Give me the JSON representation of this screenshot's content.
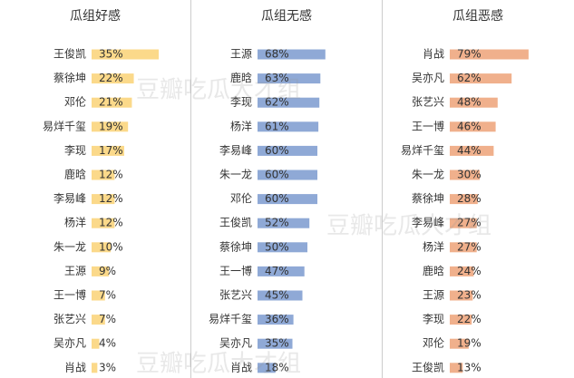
{
  "watermark": "豆瓣吃瓜大才组",
  "chart_data": [
    {
      "type": "bar",
      "title": "瓜组好感",
      "color": "#fbd98a",
      "xlim": [
        0,
        52
      ],
      "categories": [
        "王俊凯",
        "蔡徐坤",
        "邓伦",
        "易烊千玺",
        "李现",
        "鹿晗",
        "李易峰",
        "杨洋",
        "朱一龙",
        "王源",
        "王一博",
        "张艺兴",
        "吴亦凡",
        "肖战"
      ],
      "values": [
        35,
        22,
        21,
        19,
        17,
        12,
        12,
        12,
        10,
        9,
        7,
        7,
        4,
        3
      ],
      "value_labels": [
        "35%",
        "22%",
        "21%",
        "19%",
        "17%",
        "12%",
        "12%",
        "12%",
        "10%",
        "9%",
        "7%",
        "7%",
        "4%",
        "3%"
      ]
    },
    {
      "type": "bar",
      "title": "瓜组无感",
      "color": "#8fa9d6",
      "xlim": [
        0,
        100
      ],
      "categories": [
        "王源",
        "鹿晗",
        "李现",
        "杨洋",
        "李易峰",
        "朱一龙",
        "邓伦",
        "王俊凯",
        "蔡徐坤",
        "王一博",
        "张艺兴",
        "易烊千玺",
        "吴亦凡",
        "肖战"
      ],
      "values": [
        68,
        63,
        62,
        61,
        60,
        60,
        60,
        52,
        50,
        47,
        45,
        36,
        35,
        18
      ],
      "value_labels": [
        "68%",
        "63%",
        "62%",
        "61%",
        "60%",
        "60%",
        "60%",
        "52%",
        "50%",
        "47%",
        "45%",
        "36%",
        "35%",
        "18%"
      ]
    },
    {
      "type": "bar",
      "title": "瓜组恶感",
      "color": "#f0b08c",
      "xlim": [
        0,
        100
      ],
      "categories": [
        "肖战",
        "吴亦凡",
        "张艺兴",
        "王一博",
        "易烊千玺",
        "朱一龙",
        "蔡徐坤",
        "李易峰",
        "杨洋",
        "鹿晗",
        "王源",
        "李现",
        "邓伦",
        "王俊凯"
      ],
      "values": [
        79,
        62,
        48,
        46,
        44,
        30,
        28,
        27,
        27,
        24,
        23,
        22,
        19,
        13
      ],
      "value_labels": [
        "79%",
        "62%",
        "48%",
        "46%",
        "44%",
        "30%",
        "28%",
        "27%",
        "27%",
        "24%",
        "23%",
        "22%",
        "19%",
        "13%"
      ]
    }
  ]
}
